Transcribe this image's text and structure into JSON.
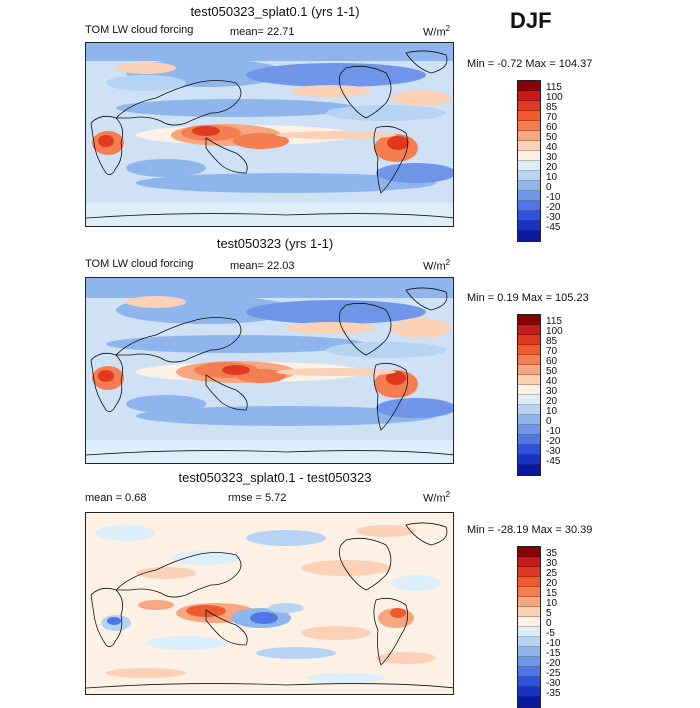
{
  "season": "DJF",
  "palettes": {
    "field": [
      "#8b0000",
      "#c51b1b",
      "#e0391f",
      "#f05a2c",
      "#f47e52",
      "#f7a682",
      "#fbd1b8",
      "#fdf1e6",
      "#dceefa",
      "#b7d3f2",
      "#8fb6ec",
      "#6f96e8",
      "#4f76e6",
      "#2d52df",
      "#1a32c4",
      "#0a1a9e"
    ],
    "diff": [
      "#8b0000",
      "#c51b1b",
      "#e0391f",
      "#f05a2c",
      "#f47e52",
      "#f7a682",
      "#fbd1b8",
      "#fdf1e6",
      "#dceefa",
      "#b7d3f2",
      "#8fb6ec",
      "#6f96e8",
      "#4f76e6",
      "#2d52df",
      "#1a32c4",
      "#0a1a9e"
    ]
  },
  "panels": [
    {
      "title": "test050323_splat0.1 (yrs 1-1)",
      "left_label": "TOM LW cloud forcing",
      "mid_label": "mean=  22.71",
      "units_base": "W/m",
      "units_sup": "2",
      "minmax": "Min =   -0.72 Max = 104.37",
      "colorbar_labels": [
        "115",
        "100",
        "85",
        "70",
        "60",
        "50",
        "40",
        "30",
        "20",
        "10",
        "0",
        "-10",
        "-20",
        "-30",
        "-45"
      ],
      "palette": "field"
    },
    {
      "title": "test050323 (yrs 1-1)",
      "left_label": "TOM LW cloud forcing",
      "mid_label": "mean=  22.03",
      "units_base": "W/m",
      "units_sup": "2",
      "minmax": "Min =    0.19 Max = 105.23",
      "colorbar_labels": [
        "115",
        "100",
        "85",
        "70",
        "60",
        "50",
        "40",
        "30",
        "20",
        "10",
        "0",
        "-10",
        "-20",
        "-30",
        "-45"
      ],
      "palette": "field"
    },
    {
      "title": "test050323_splat0.1 - test050323",
      "left_label": "mean =    0.68",
      "mid_label": "rmse =    5.72",
      "units_base": "W/m",
      "units_sup": "2",
      "minmax": "Min = -28.19 Max =  30.39",
      "colorbar_labels": [
        "35",
        "30",
        "25",
        "20",
        "15",
        "10",
        "5",
        "0",
        "-5",
        "-10",
        "-15",
        "-20",
        "-25",
        "-30",
        "-35"
      ],
      "palette": "diff"
    }
  ]
}
